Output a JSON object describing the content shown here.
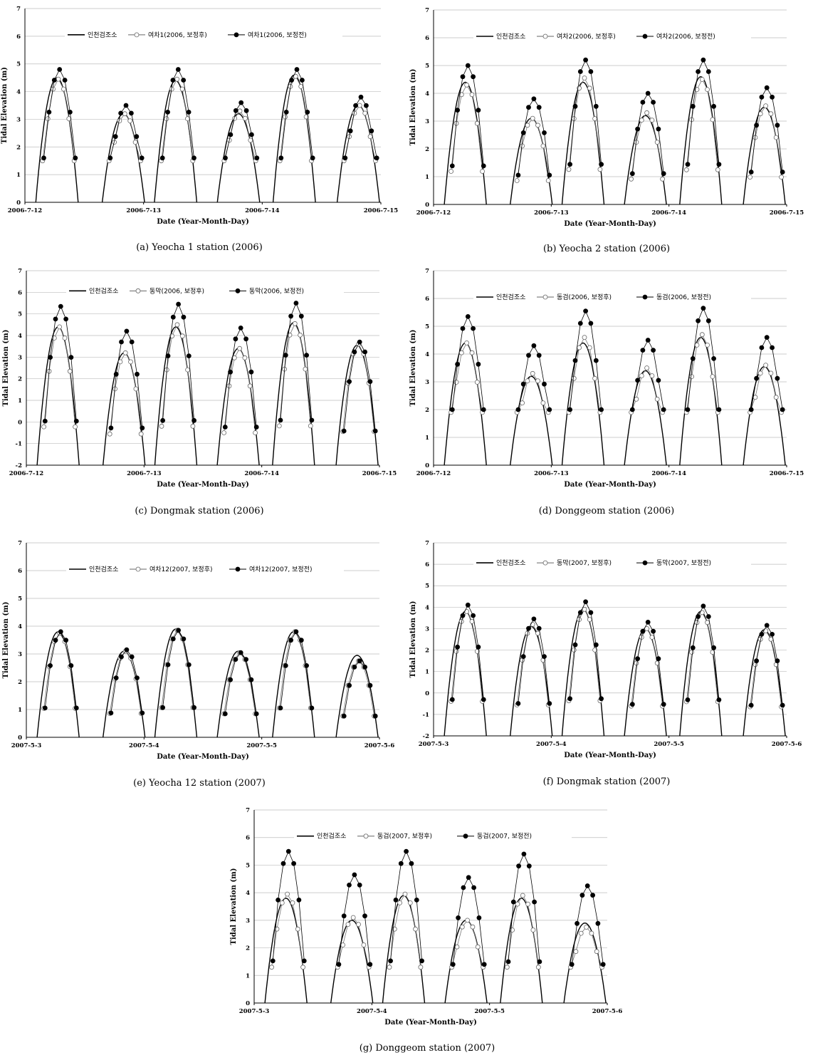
{
  "figure": {
    "xlabel": "Date (Year-Month-Day)",
    "ylabel": "Tidal Elevation (m)"
  },
  "chart_data": [
    {
      "id": "a",
      "type": "line",
      "caption": "(a)  Yeocha 1 station (2006)",
      "xlabel": "Date (Year-Month-Day)",
      "ylabel": "Tidal Elevation (m)",
      "xlim": [
        0,
        3
      ],
      "ylim": [
        0,
        7
      ],
      "yticks": [
        0,
        1,
        2,
        3,
        4,
        5,
        6,
        7
      ],
      "xticks": [
        {
          "x": 0,
          "label": "2006-7-12"
        },
        {
          "x": 1,
          "label": "2006-7-13"
        },
        {
          "x": 2,
          "label": "2006-7-14"
        },
        {
          "x": 3,
          "label": "2006-7-15"
        }
      ],
      "ref_series": {
        "name": "인천검조소",
        "peaks": [
          4.5,
          3.2,
          4.4,
          3.2,
          4.6,
          3.5
        ]
      },
      "series": [
        {
          "name": "여차1(2006, 보정후)",
          "marker": "open",
          "peaks": [
            4.45,
            3.2,
            4.45,
            3.3,
            4.55,
            3.5
          ]
        },
        {
          "name": "여차1(2006, 보정전)",
          "marker": "filled",
          "peaks": [
            4.8,
            3.5,
            4.8,
            3.6,
            4.8,
            3.8
          ]
        }
      ],
      "floor_series": 0.0,
      "data_floor": 1.5
    },
    {
      "id": "b",
      "type": "line",
      "caption": "(b)  Yeocha 2 station (2006)",
      "xlabel": "Date (Year-Month-Day)",
      "ylabel": "Tidal Elevation (m)",
      "xlim": [
        0,
        3
      ],
      "ylim": [
        0,
        7
      ],
      "yticks": [
        0,
        1,
        2,
        3,
        4,
        5,
        6,
        7
      ],
      "xticks": [
        {
          "x": 0,
          "label": "2006-7-12"
        },
        {
          "x": 1,
          "label": "2006-7-13"
        },
        {
          "x": 2,
          "label": "2006-7-14"
        },
        {
          "x": 3,
          "label": "2006-7-15"
        }
      ],
      "ref_series": {
        "name": "인천검조소",
        "peaks": [
          4.4,
          3.1,
          4.4,
          3.2,
          4.6,
          3.5
        ]
      },
      "series": [
        {
          "name": "여차2(2006, 보정후)",
          "marker": "open",
          "peaks": [
            4.3,
            3.1,
            4.55,
            3.3,
            4.5,
            3.55
          ]
        },
        {
          "name": "여차2(2006, 보정전)",
          "marker": "filled",
          "peaks": [
            5.0,
            3.8,
            5.2,
            4.0,
            5.2,
            4.2
          ]
        }
      ],
      "floor_series": 0.0,
      "data_floor": 0.3
    },
    {
      "id": "c",
      "type": "line",
      "caption": "(c)  Dongmak station (2006)",
      "xlabel": "Date (Year-Month-Day)",
      "ylabel": "Tidal Elevation (m)",
      "xlim": [
        0,
        3
      ],
      "ylim": [
        -2,
        7
      ],
      "yticks": [
        -2,
        -1,
        0,
        1,
        2,
        3,
        4,
        5,
        6,
        7
      ],
      "xticks": [
        {
          "x": 0,
          "label": "2006-7-12"
        },
        {
          "x": 1,
          "label": "2006-7-13"
        },
        {
          "x": 2,
          "label": "2006-7-14"
        },
        {
          "x": 3,
          "label": "2006-7-15"
        }
      ],
      "ref_series": {
        "name": "인천검조소",
        "peaks": [
          4.4,
          3.2,
          4.4,
          3.4,
          4.6,
          3.55
        ]
      },
      "series": [
        {
          "name": "동막(2006, 보정후)",
          "marker": "open",
          "peaks": [
            4.4,
            3.2,
            4.5,
            3.4,
            4.55,
            3.6
          ]
        },
        {
          "name": "동막(2006, 보정전)",
          "marker": "filled",
          "peaks": [
            5.35,
            4.2,
            5.45,
            4.35,
            5.5,
            3.7
          ]
        }
      ],
      "floor_series": -2.0,
      "data_floor": -1.2
    },
    {
      "id": "d",
      "type": "line",
      "caption": "(d)  Donggeom station (2006)",
      "xlabel": "Date (Year-Month-Day)",
      "ylabel": "Tidal Elevation (m)",
      "xlim": [
        0,
        3
      ],
      "ylim": [
        0,
        7
      ],
      "yticks": [
        0,
        1,
        2,
        3,
        4,
        5,
        6,
        7
      ],
      "xticks": [
        {
          "x": 0,
          "label": "2006-7-12"
        },
        {
          "x": 1,
          "label": "2006-7-13"
        },
        {
          "x": 2,
          "label": "2006-7-14"
        },
        {
          "x": 3,
          "label": "2006-7-15"
        }
      ],
      "ref_series": {
        "name": "인천검조소",
        "peaks": [
          4.4,
          3.2,
          4.4,
          3.4,
          4.6,
          3.55
        ]
      },
      "series": [
        {
          "name": "동검(2006, 보정후)",
          "marker": "open",
          "peaks": [
            4.4,
            3.3,
            4.6,
            3.5,
            4.7,
            3.6
          ]
        },
        {
          "name": "동검(2006, 보정전)",
          "marker": "filled",
          "peaks": [
            5.35,
            4.3,
            5.55,
            4.5,
            5.65,
            4.6
          ]
        }
      ],
      "floor_series": 0.0,
      "data_floor": 1.9
    },
    {
      "id": "e",
      "type": "line",
      "caption": "(e)  Yeocha 12 station (2007)",
      "xlabel": "Date (Year-Month-Day)",
      "ylabel": "Tidal Elevation (m)",
      "xlim": [
        0,
        3
      ],
      "ylim": [
        0,
        7
      ],
      "yticks": [
        0,
        1,
        2,
        3,
        4,
        5,
        6,
        7
      ],
      "xticks": [
        {
          "x": 0,
          "label": "2007-5-3"
        },
        {
          "x": 1,
          "label": "2007-5-4"
        },
        {
          "x": 2,
          "label": "2007-5-5"
        },
        {
          "x": 3,
          "label": "2007-5-6"
        }
      ],
      "ref_series": {
        "name": "인천검조소",
        "peaks": [
          3.8,
          3.1,
          3.9,
          3.1,
          3.8,
          2.95
        ]
      },
      "series": [
        {
          "name": "여차12(2007, 보정후)",
          "marker": "open",
          "peaks": [
            3.75,
            3.1,
            3.85,
            3.05,
            3.8,
            2.75
          ]
        },
        {
          "name": "여차12(2007, 보정전)",
          "marker": "filled",
          "peaks": [
            3.8,
            3.15,
            3.85,
            3.05,
            3.8,
            2.75
          ]
        }
      ],
      "floor_series": 0.0,
      "data_floor": 0.75
    },
    {
      "id": "f",
      "type": "line",
      "caption": "(f)  Dongmak station (2007)",
      "xlabel": "Date (Year-Month-Day)",
      "ylabel": "Tidal Elevation (m)",
      "xlim": [
        0,
        3
      ],
      "ylim": [
        -2,
        7
      ],
      "yticks": [
        -2,
        -1,
        0,
        1,
        2,
        3,
        4,
        5,
        6,
        7
      ],
      "xticks": [
        {
          "x": 0,
          "label": "2007-5-3"
        },
        {
          "x": 1,
          "label": "2007-5-4"
        },
        {
          "x": 2,
          "label": "2007-5-5"
        },
        {
          "x": 3,
          "label": "2007-5-6"
        }
      ],
      "ref_series": {
        "name": "인천검조소",
        "peaks": [
          3.8,
          3.1,
          3.9,
          3.0,
          3.8,
          2.95
        ]
      },
      "series": [
        {
          "name": "동막(2007, 보정후)",
          "marker": "open",
          "peaks": [
            3.8,
            3.2,
            3.9,
            3.0,
            3.75,
            2.9
          ]
        },
        {
          "name": "동막(2007, 보정전)",
          "marker": "filled",
          "peaks": [
            4.1,
            3.45,
            4.25,
            3.3,
            4.05,
            3.15
          ]
        }
      ],
      "floor_series": -2.0,
      "data_floor": -1.6
    },
    {
      "id": "g",
      "type": "line",
      "caption": "(g)  Donggeom station (2007)",
      "xlabel": "Date (Year-Month-Day)",
      "ylabel": "Tidal Elevation (m)",
      "xlim": [
        0,
        3
      ],
      "ylim": [
        0,
        7
      ],
      "yticks": [
        0,
        1,
        2,
        3,
        4,
        5,
        6,
        7
      ],
      "xticks": [
        {
          "x": 0,
          "label": "2007-5-3"
        },
        {
          "x": 1,
          "label": "2007-5-4"
        },
        {
          "x": 2,
          "label": "2007-5-5"
        },
        {
          "x": 3,
          "label": "2007-5-6"
        }
      ],
      "ref_series": {
        "name": "인천검조소",
        "peaks": [
          3.8,
          3.0,
          3.9,
          3.0,
          3.8,
          2.9
        ]
      },
      "series": [
        {
          "name": "동검(2007, 보정후)",
          "marker": "open",
          "peaks": [
            3.95,
            3.1,
            3.95,
            3.0,
            3.9,
            2.75
          ]
        },
        {
          "name": "동검(2007, 보정전)",
          "marker": "filled",
          "peaks": [
            5.5,
            4.65,
            5.5,
            4.55,
            5.4,
            4.25
          ]
        }
      ],
      "floor_series": 0.0,
      "data_floor": 1.3
    }
  ]
}
